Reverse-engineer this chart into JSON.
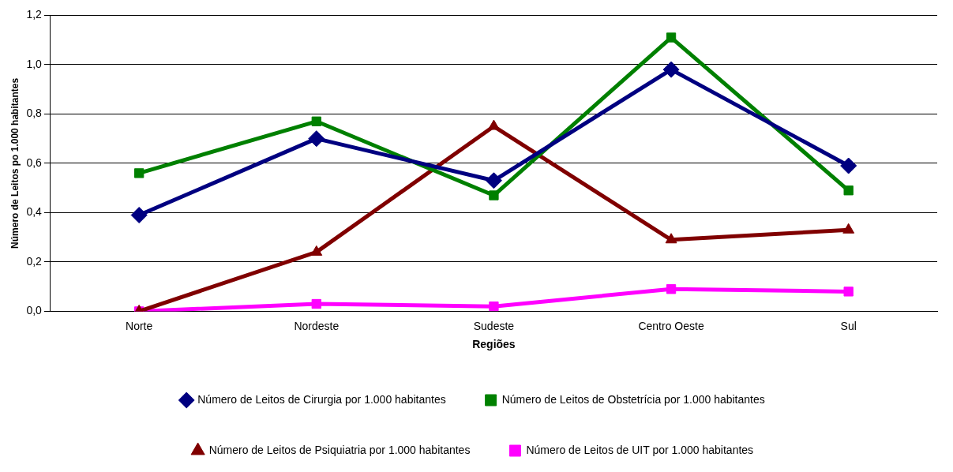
{
  "chart_data": {
    "type": "line",
    "xlabel": "Regiões",
    "ylabel": "Número de Leitos po 1.000 habitantes",
    "categories": [
      "Norte",
      "Nordeste",
      "Sudeste",
      "Centro Oeste",
      "Sul"
    ],
    "series": [
      {
        "name": "Número de Leitos de Cirurgia por 1.000 habitantes",
        "color": "#000080",
        "marker": "diamond",
        "values": [
          0.39,
          0.7,
          0.53,
          0.98,
          0.59
        ]
      },
      {
        "name": "Número de Leitos de Obstetrícia por 1.000 habitantes",
        "color": "#008000",
        "marker": "square",
        "values": [
          0.56,
          0.77,
          0.47,
          1.11,
          0.49
        ]
      },
      {
        "name": "Número de Leitos de Psiquiatria por 1.000 habitantes",
        "color": "#800000",
        "marker": "triangle",
        "values": [
          0.0,
          0.24,
          0.75,
          0.29,
          0.33
        ]
      },
      {
        "name": "Número de Leitos de UIT por 1.000 habitantes",
        "color": "#ff00ff",
        "marker": "square",
        "values": [
          0.0,
          0.03,
          0.02,
          0.09,
          0.08
        ]
      }
    ],
    "ylim": [
      0,
      1.2
    ],
    "yticks": [
      {
        "value": 0,
        "label": "0,0"
      },
      {
        "value": 0.2,
        "label": "0,2"
      },
      {
        "value": 0.4,
        "label": "0,4"
      },
      {
        "value": 0.6,
        "label": "0,6"
      },
      {
        "value": 0.8,
        "label": "0,8"
      },
      {
        "value": 1,
        "label": "1,0"
      },
      {
        "value": 1.2,
        "label": "1,2"
      }
    ],
    "grid": "y",
    "legend": "bottom",
    "line_style": "solid"
  }
}
